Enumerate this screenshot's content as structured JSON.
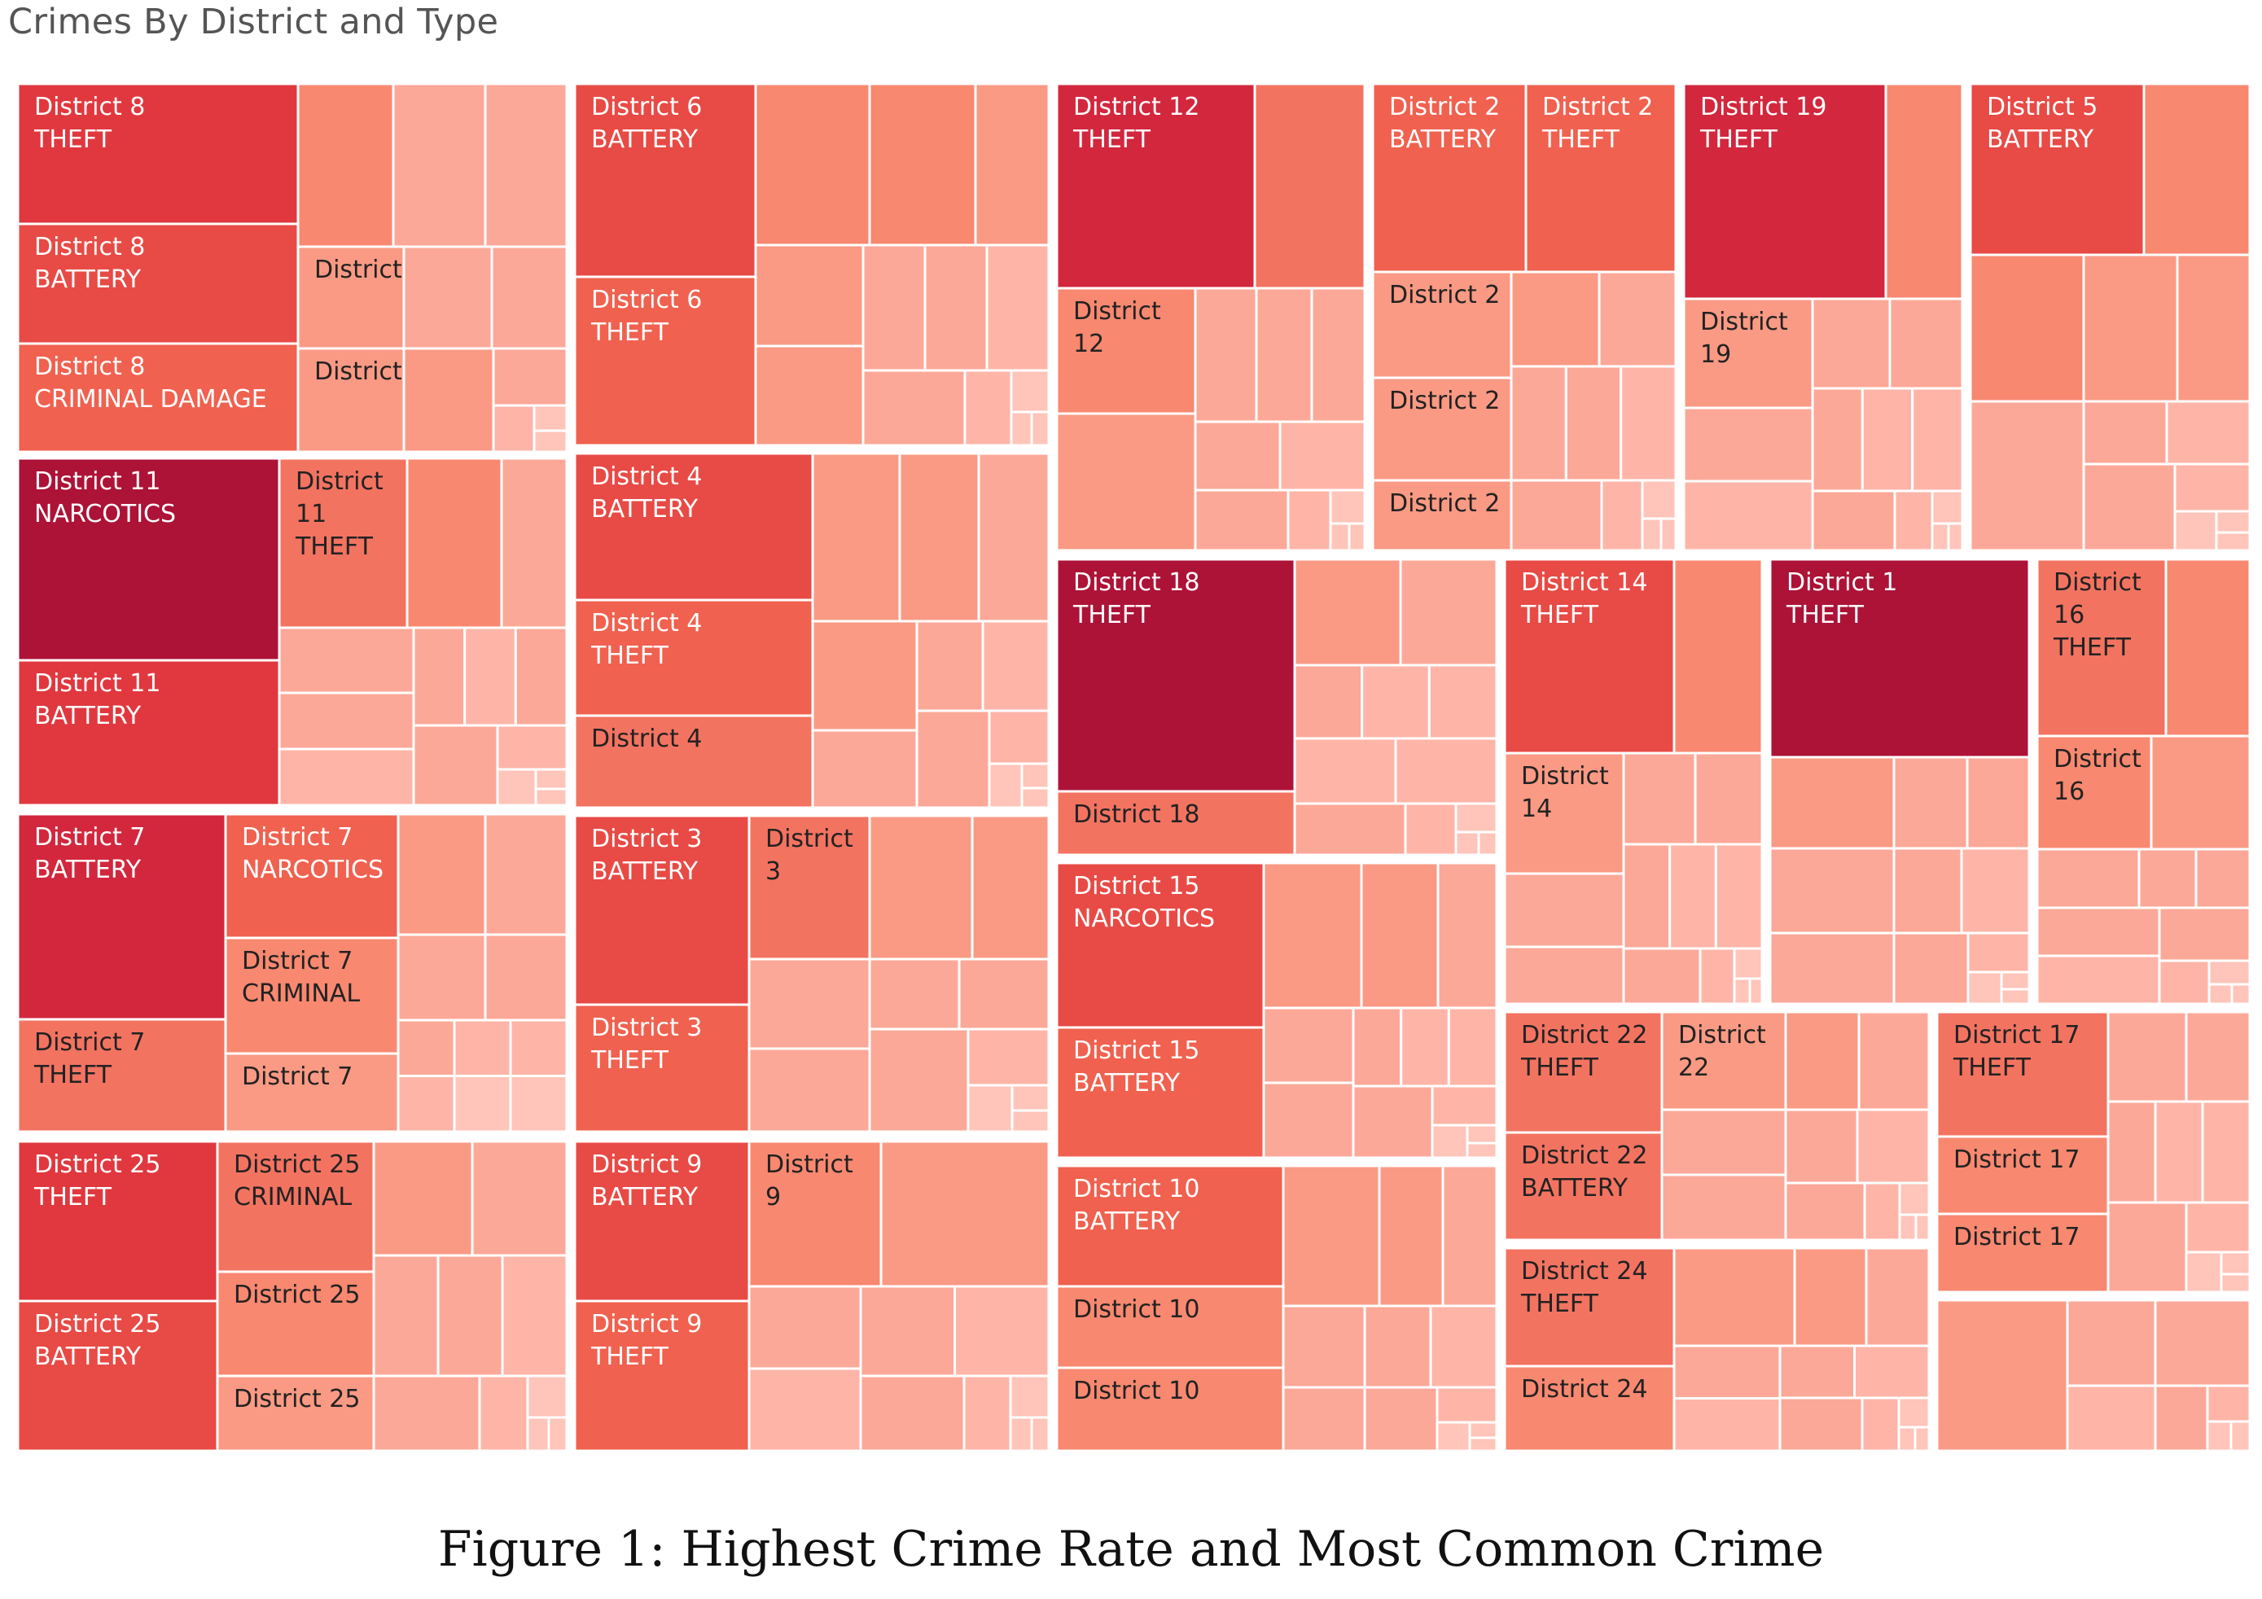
{
  "title": "Crimes By District and Type",
  "caption": "Figure 1: Highest Crime Rate and Most Common Crime",
  "colors": {
    "c0": "#ad1237",
    "c1": "#d2273d",
    "c2": "#e0383e",
    "c3": "#e84a45",
    "c4": "#f0614f",
    "c5": "#f37361",
    "c6": "#f88870",
    "c7": "#fa9a84",
    "c8": "#fca898",
    "c9": "#feb5a8",
    "c10": "#ffc4ba"
  },
  "chart_data": {
    "type": "treemap",
    "title": "Crimes By District and Type",
    "groups": [
      {
        "district": "District 8",
        "labeled": [
          {
            "lines": [
              "District 8",
              "THEFT"
            ]
          },
          {
            "lines": [
              "District 8",
              "BATTERY"
            ]
          },
          {
            "lines": [
              "District 8",
              "CRIMINAL DAMAGE"
            ]
          },
          {
            "lines": [
              "District"
            ]
          },
          {
            "lines": [
              "District"
            ]
          }
        ]
      },
      {
        "district": "District 6",
        "labeled": [
          {
            "lines": [
              "District 6",
              "BATTERY"
            ]
          },
          {
            "lines": [
              "District 6",
              "THEFT"
            ]
          }
        ]
      },
      {
        "district": "District 12",
        "labeled": [
          {
            "lines": [
              "District 12",
              "THEFT"
            ]
          },
          {
            "lines": [
              "District",
              "12"
            ]
          }
        ]
      },
      {
        "district": "District 2",
        "labeled": [
          {
            "lines": [
              "District 2",
              "BATTERY"
            ]
          },
          {
            "lines": [
              "District 2",
              "THEFT"
            ]
          },
          {
            "lines": [
              "District 2"
            ]
          },
          {
            "lines": [
              "District 2"
            ]
          },
          {
            "lines": [
              "District 2"
            ]
          }
        ]
      },
      {
        "district": "District 19",
        "labeled": [
          {
            "lines": [
              "District 19",
              "THEFT"
            ]
          },
          {
            "lines": [
              "District",
              "19"
            ]
          }
        ]
      },
      {
        "district": "District 5",
        "labeled": [
          {
            "lines": [
              "District 5",
              "BATTERY"
            ]
          }
        ]
      },
      {
        "district": "District 11",
        "labeled": [
          {
            "lines": [
              "District 11",
              "NARCOTICS"
            ]
          },
          {
            "lines": [
              "District 11",
              "BATTERY"
            ]
          },
          {
            "lines": [
              "District",
              "11",
              "THEFT"
            ]
          }
        ]
      },
      {
        "district": "District 4",
        "labeled": [
          {
            "lines": [
              "District 4",
              "BATTERY"
            ]
          },
          {
            "lines": [
              "District 4",
              "THEFT"
            ]
          },
          {
            "lines": [
              "District 4"
            ]
          }
        ]
      },
      {
        "district": "District 18",
        "labeled": [
          {
            "lines": [
              "District 18",
              "THEFT"
            ]
          },
          {
            "lines": [
              "District 18"
            ]
          }
        ]
      },
      {
        "district": "District 14",
        "labeled": [
          {
            "lines": [
              "District 14",
              "THEFT"
            ]
          },
          {
            "lines": [
              "District",
              "14"
            ]
          }
        ]
      },
      {
        "district": "District 1",
        "labeled": [
          {
            "lines": [
              "District 1",
              "THEFT"
            ]
          }
        ]
      },
      {
        "district": "District 16",
        "labeled": [
          {
            "lines": [
              "District",
              "16",
              "THEFT"
            ]
          },
          {
            "lines": [
              "District",
              "16"
            ]
          }
        ]
      },
      {
        "district": "District 7",
        "labeled": [
          {
            "lines": [
              "District 7",
              "BATTERY"
            ]
          },
          {
            "lines": [
              "District 7",
              "THEFT"
            ]
          },
          {
            "lines": [
              "District 7",
              "NARCOTICS"
            ]
          },
          {
            "lines": [
              "District 7",
              "CRIMINAL"
            ]
          },
          {
            "lines": [
              "District 7"
            ]
          }
        ]
      },
      {
        "district": "District 3",
        "labeled": [
          {
            "lines": [
              "District 3",
              "BATTERY"
            ]
          },
          {
            "lines": [
              "District 3",
              "THEFT"
            ]
          },
          {
            "lines": [
              "District",
              "3"
            ]
          }
        ]
      },
      {
        "district": "District 15",
        "labeled": [
          {
            "lines": [
              "District 15",
              "NARCOTICS"
            ]
          },
          {
            "lines": [
              "District 15",
              "BATTERY"
            ]
          }
        ]
      },
      {
        "district": "District 22",
        "labeled": [
          {
            "lines": [
              "District 22",
              "THEFT"
            ]
          },
          {
            "lines": [
              "District 22",
              "BATTERY"
            ]
          },
          {
            "lines": [
              "District",
              "22"
            ]
          }
        ]
      },
      {
        "district": "District 17",
        "labeled": [
          {
            "lines": [
              "District 17",
              "THEFT"
            ]
          },
          {
            "lines": [
              "District 17"
            ]
          },
          {
            "lines": [
              "District 17"
            ]
          }
        ]
      },
      {
        "district": "District 25",
        "labeled": [
          {
            "lines": [
              "District 25",
              "THEFT"
            ]
          },
          {
            "lines": [
              "District 25",
              "BATTERY"
            ]
          },
          {
            "lines": [
              "District 25",
              "CRIMINAL"
            ]
          },
          {
            "lines": [
              "District 25"
            ]
          },
          {
            "lines": [
              "District 25"
            ]
          }
        ]
      },
      {
        "district": "District 9",
        "labeled": [
          {
            "lines": [
              "District 9",
              "BATTERY"
            ]
          },
          {
            "lines": [
              "District 9",
              "THEFT"
            ]
          },
          {
            "lines": [
              "District",
              "9"
            ]
          }
        ]
      },
      {
        "district": "District 10",
        "labeled": [
          {
            "lines": [
              "District 10",
              "BATTERY"
            ]
          },
          {
            "lines": [
              "District 10"
            ]
          },
          {
            "lines": [
              "District 10"
            ]
          }
        ]
      },
      {
        "district": "District 24",
        "labeled": [
          {
            "lines": [
              "District 24",
              "THEFT"
            ]
          },
          {
            "lines": [
              "District 24"
            ]
          }
        ]
      }
    ]
  }
}
